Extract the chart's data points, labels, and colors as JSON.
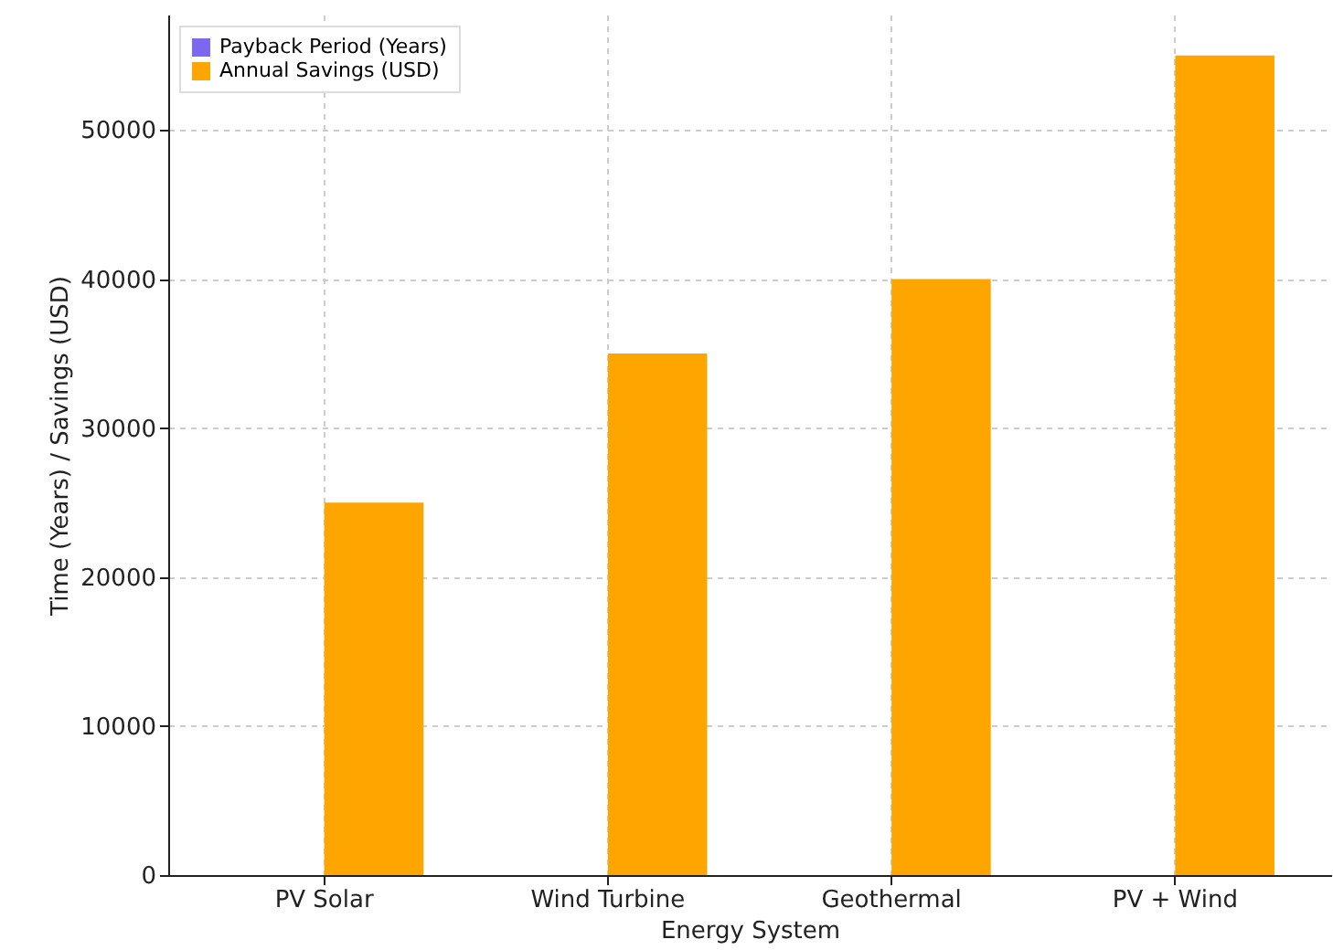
{
  "chart_data": {
    "type": "bar",
    "xlabel": "Energy System",
    "ylabel": "Time (Years) / Savings (USD)",
    "categories": [
      "PV Solar",
      "Wind Turbine",
      "Geothermal",
      "PV + Wind"
    ],
    "series": [
      {
        "name": "Payback Period (Years)",
        "color": "#7b68ee",
        "values": [
          0,
          0,
          0,
          0
        ]
      },
      {
        "name": "Annual Savings (USD)",
        "color": "#ffa500",
        "values": [
          25000,
          35000,
          40000,
          55000
        ]
      }
    ],
    "ylim": [
      0,
      57750
    ],
    "yticks": [
      0,
      10000,
      20000,
      30000,
      40000,
      50000
    ],
    "grid": true,
    "legend": "top left"
  }
}
